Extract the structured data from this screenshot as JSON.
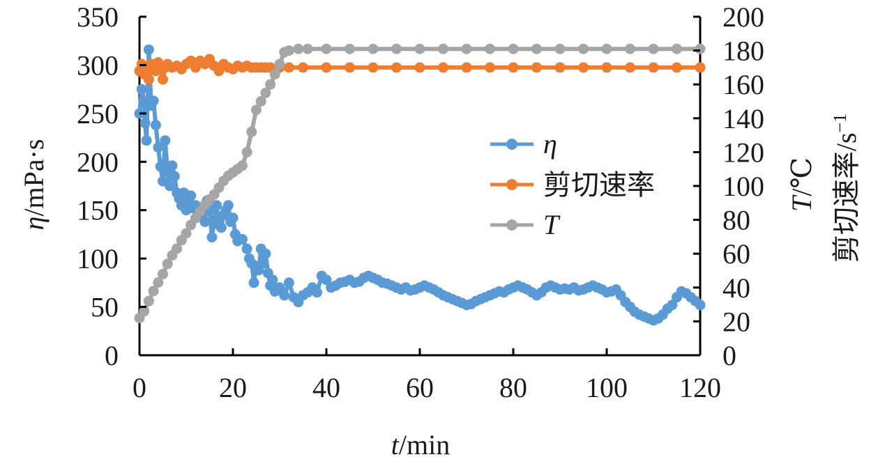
{
  "chart_data": {
    "type": "scatter",
    "x_label": {
      "symbol": "t",
      "rest": "/min"
    },
    "y_left_label": {
      "symbol": "η",
      "rest": "/mPa·s"
    },
    "y_right_label": {
      "line1_symbol": "T",
      "line1_rest": "/℃",
      "line2": "剪切速率/s",
      "line2_sup": "−1"
    },
    "x_range": [
      0,
      120
    ],
    "y_left_range": [
      0,
      350
    ],
    "y_right_range": [
      0,
      200
    ],
    "x_ticks": [
      "0",
      "20",
      "40",
      "60",
      "80",
      "100",
      "120"
    ],
    "y_left_ticks": [
      "0",
      "50",
      "100",
      "150",
      "200",
      "250",
      "300",
      "350"
    ],
    "y_right_ticks": [
      "0",
      "20",
      "40",
      "60",
      "80",
      "100",
      "120",
      "140",
      "160",
      "180",
      "200"
    ],
    "legend_position": "center-right",
    "series": [
      {
        "name": "η",
        "axis": "left",
        "color": "#5b9bd5",
        "points": [
          [
            0,
            250
          ],
          [
            0.5,
            275
          ],
          [
            1,
            262
          ],
          [
            1.2,
            240
          ],
          [
            1.5,
            222
          ],
          [
            2,
            316
          ],
          [
            2.5,
            258
          ],
          [
            3,
            263
          ],
          [
            3.5,
            238
          ],
          [
            4,
            215
          ],
          [
            4.5,
            195
          ],
          [
            5,
            180
          ],
          [
            5.5,
            222
          ],
          [
            6,
            190
          ],
          [
            6.5,
            175
          ],
          [
            7,
            196
          ],
          [
            7.5,
            185
          ],
          [
            8,
            168
          ],
          [
            8.5,
            162
          ],
          [
            9,
            155
          ],
          [
            9.5,
            168
          ],
          [
            10,
            150
          ],
          [
            10.5,
            160
          ],
          [
            11,
            165
          ],
          [
            11.5,
            152
          ],
          [
            12,
            155
          ],
          [
            12.5,
            148
          ],
          [
            13,
            145
          ],
          [
            14,
            138
          ],
          [
            14.5,
            160
          ],
          [
            15,
            150
          ],
          [
            15.5,
            122
          ],
          [
            16,
            140
          ],
          [
            16.5,
            155
          ],
          [
            17,
            135
          ],
          [
            17.5,
            132
          ],
          [
            18,
            145
          ],
          [
            18.5,
            150
          ],
          [
            19,
            155
          ],
          [
            19.5,
            138
          ],
          [
            20,
            142
          ],
          [
            20.5,
            125
          ],
          [
            21,
            118
          ],
          [
            22,
            120
          ],
          [
            23,
            110
          ],
          [
            23.5,
            100
          ],
          [
            24,
            95
          ],
          [
            24.5,
            75
          ],
          [
            25,
            92
          ],
          [
            25.5,
            88
          ],
          [
            26,
            110
          ],
          [
            26.5,
            95
          ],
          [
            27,
            105
          ],
          [
            27.5,
            85
          ],
          [
            28,
            72
          ],
          [
            28.5,
            78
          ],
          [
            29,
            66
          ],
          [
            30,
            70
          ],
          [
            31,
            62
          ],
          [
            32,
            75
          ],
          [
            33,
            60
          ],
          [
            34,
            55
          ],
          [
            35,
            62
          ],
          [
            36,
            65
          ],
          [
            37,
            70
          ],
          [
            38,
            65
          ],
          [
            39,
            82
          ],
          [
            40,
            78
          ],
          [
            41,
            70
          ],
          [
            42,
            72
          ],
          [
            43,
            75
          ],
          [
            44,
            76
          ],
          [
            45,
            78
          ],
          [
            46,
            75
          ],
          [
            47,
            76
          ],
          [
            48,
            80
          ],
          [
            49,
            82
          ],
          [
            50,
            80
          ],
          [
            51,
            78
          ],
          [
            52,
            75
          ],
          [
            53,
            74
          ],
          [
            54,
            72
          ],
          [
            55,
            70
          ],
          [
            56,
            68
          ],
          [
            57,
            70
          ],
          [
            58,
            67
          ],
          [
            59,
            68
          ],
          [
            60,
            70
          ],
          [
            61,
            72
          ],
          [
            62,
            70
          ],
          [
            63,
            68
          ],
          [
            64,
            65
          ],
          [
            65,
            62
          ],
          [
            66,
            60
          ],
          [
            67,
            58
          ],
          [
            68,
            56
          ],
          [
            69,
            54
          ],
          [
            70,
            52
          ],
          [
            71,
            53
          ],
          [
            72,
            56
          ],
          [
            73,
            58
          ],
          [
            74,
            60
          ],
          [
            75,
            62
          ],
          [
            76,
            64
          ],
          [
            77,
            66
          ],
          [
            78,
            65
          ],
          [
            79,
            68
          ],
          [
            80,
            70
          ],
          [
            81,
            72
          ],
          [
            82,
            70
          ],
          [
            83,
            68
          ],
          [
            84,
            65
          ],
          [
            85,
            62
          ],
          [
            86,
            65
          ],
          [
            87,
            70
          ],
          [
            88,
            72
          ],
          [
            89,
            70
          ],
          [
            90,
            68
          ],
          [
            91,
            69
          ],
          [
            92,
            68
          ],
          [
            93,
            70
          ],
          [
            94,
            67
          ],
          [
            95,
            68
          ],
          [
            96,
            70
          ],
          [
            97,
            72
          ],
          [
            98,
            70
          ],
          [
            99,
            68
          ],
          [
            100,
            65
          ],
          [
            101,
            66
          ],
          [
            102,
            68
          ],
          [
            103,
            62
          ],
          [
            104,
            55
          ],
          [
            105,
            50
          ],
          [
            106,
            45
          ],
          [
            107,
            42
          ],
          [
            108,
            40
          ],
          [
            109,
            38
          ],
          [
            110,
            36
          ],
          [
            111,
            38
          ],
          [
            112,
            42
          ],
          [
            113,
            48
          ],
          [
            114,
            52
          ],
          [
            115,
            60
          ],
          [
            116,
            66
          ],
          [
            117,
            64
          ],
          [
            118,
            60
          ],
          [
            119,
            56
          ],
          [
            120,
            52
          ]
        ]
      },
      {
        "name": "剪切速率",
        "axis": "right",
        "color": "#ed7d31",
        "points": [
          [
            0,
            168
          ],
          [
            0.5,
            172
          ],
          [
            1,
            166
          ],
          [
            1.5,
            170
          ],
          [
            2,
            163
          ],
          [
            2.5,
            172
          ],
          [
            3,
            170
          ],
          [
            3.5,
            168
          ],
          [
            4,
            173
          ],
          [
            4.5,
            171
          ],
          [
            5,
            163
          ],
          [
            5.5,
            170
          ],
          [
            6,
            172
          ],
          [
            7,
            170
          ],
          [
            8,
            171
          ],
          [
            9,
            169
          ],
          [
            10,
            172
          ],
          [
            11,
            174
          ],
          [
            12,
            170
          ],
          [
            13,
            174
          ],
          [
            14,
            172
          ],
          [
            15,
            175
          ],
          [
            16,
            171
          ],
          [
            17,
            168
          ],
          [
            18,
            172
          ],
          [
            19,
            170
          ],
          [
            20,
            169
          ],
          [
            21,
            171
          ],
          [
            22,
            170
          ],
          [
            23,
            171
          ],
          [
            24,
            170
          ],
          [
            25,
            170
          ],
          [
            26,
            170
          ],
          [
            27,
            170
          ],
          [
            28,
            170
          ],
          [
            30,
            170
          ],
          [
            32,
            170
          ],
          [
            35,
            170
          ],
          [
            40,
            170
          ],
          [
            45,
            170
          ],
          [
            50,
            170
          ],
          [
            55,
            170
          ],
          [
            60,
            170
          ],
          [
            65,
            170
          ],
          [
            70,
            170
          ],
          [
            75,
            170
          ],
          [
            80,
            170
          ],
          [
            85,
            170
          ],
          [
            90,
            170
          ],
          [
            95,
            170
          ],
          [
            100,
            170
          ],
          [
            105,
            170
          ],
          [
            110,
            170
          ],
          [
            115,
            170
          ],
          [
            120,
            170
          ]
        ]
      },
      {
        "name": "T",
        "axis": "right",
        "color": "#a5a5a5",
        "points": [
          [
            0,
            22
          ],
          [
            1,
            26
          ],
          [
            2,
            32
          ],
          [
            3,
            38
          ],
          [
            4,
            43
          ],
          [
            5,
            48
          ],
          [
            6,
            54
          ],
          [
            7,
            59
          ],
          [
            8,
            63
          ],
          [
            9,
            68
          ],
          [
            10,
            72
          ],
          [
            11,
            77
          ],
          [
            12,
            81
          ],
          [
            13,
            85
          ],
          [
            14,
            89
          ],
          [
            15,
            92
          ],
          [
            16,
            95
          ],
          [
            17,
            99
          ],
          [
            18,
            103
          ],
          [
            19,
            106
          ],
          [
            20,
            108
          ],
          [
            21,
            110
          ],
          [
            22,
            112
          ],
          [
            23,
            120
          ],
          [
            24,
            132
          ],
          [
            25,
            145
          ],
          [
            26,
            150
          ],
          [
            27,
            155
          ],
          [
            28,
            160
          ],
          [
            29,
            166
          ],
          [
            30,
            172
          ],
          [
            31,
            179
          ],
          [
            32,
            180
          ],
          [
            34,
            181
          ],
          [
            36,
            181
          ],
          [
            40,
            181
          ],
          [
            45,
            181
          ],
          [
            50,
            181
          ],
          [
            55,
            181
          ],
          [
            60,
            181
          ],
          [
            65,
            181
          ],
          [
            70,
            181
          ],
          [
            75,
            181
          ],
          [
            80,
            181
          ],
          [
            85,
            181
          ],
          [
            90,
            181
          ],
          [
            95,
            181
          ],
          [
            100,
            181
          ],
          [
            105,
            181
          ],
          [
            110,
            181
          ],
          [
            115,
            181
          ],
          [
            120,
            181
          ]
        ]
      }
    ]
  }
}
